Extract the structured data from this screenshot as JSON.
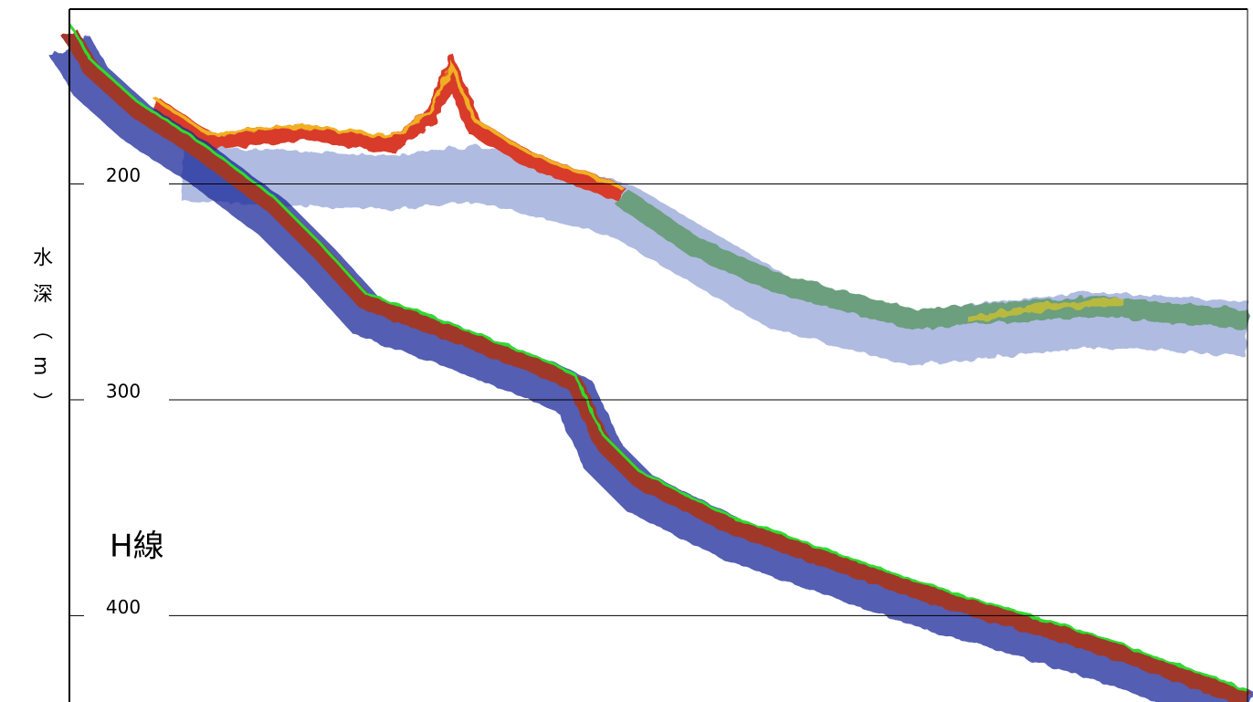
{
  "chart_data": {
    "type": "echogram",
    "y_label": "水深（m）",
    "annotation": "H線",
    "ylim": [
      119,
      440
    ],
    "yticks": [
      200,
      300,
      400
    ],
    "grid": true,
    "inverted": true
  }
}
